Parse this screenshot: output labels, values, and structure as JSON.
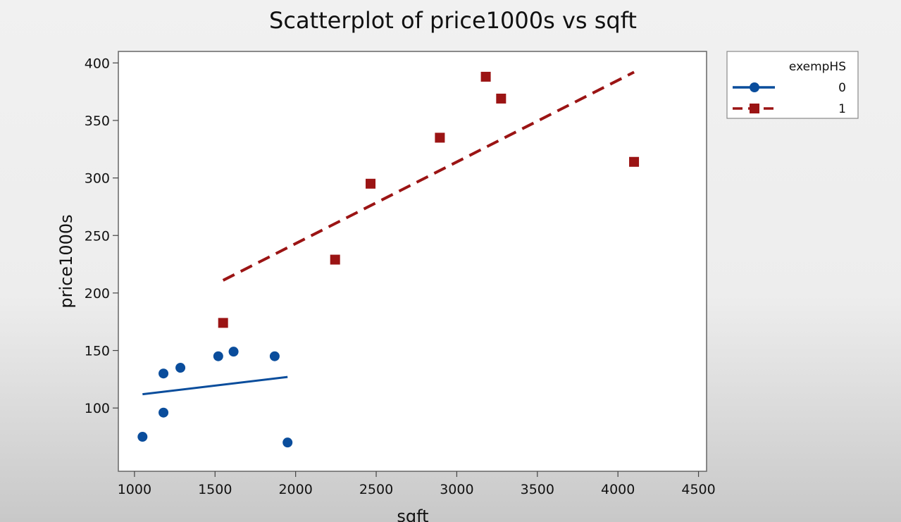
{
  "chart_data": {
    "type": "scatter",
    "title": "Scatterplot of price1000s vs sqft",
    "xlabel": "sqft",
    "ylabel": "price1000s",
    "xlim": [
      900,
      4550
    ],
    "ylim": [
      45,
      410
    ],
    "xticks": [
      1000,
      1500,
      2000,
      2500,
      3000,
      3500,
      4000,
      4500
    ],
    "yticks": [
      100,
      150,
      200,
      250,
      300,
      350,
      400
    ],
    "grid": false,
    "legend": {
      "title": "exempHS",
      "placement": "top-right outside",
      "entries": [
        "0",
        "1"
      ]
    },
    "series": [
      {
        "name": "0",
        "color": "#0a4d9c",
        "marker": "circle",
        "line_style": "solid",
        "points": [
          {
            "x": 1050,
            "y": 75
          },
          {
            "x": 1180,
            "y": 130
          },
          {
            "x": 1180,
            "y": 96
          },
          {
            "x": 1285,
            "y": 135
          },
          {
            "x": 1520,
            "y": 145
          },
          {
            "x": 1615,
            "y": 149
          },
          {
            "x": 1870,
            "y": 145
          },
          {
            "x": 1950,
            "y": 70
          }
        ],
        "fit_line": {
          "x": [
            1050,
            1950
          ],
          "y": [
            112,
            127
          ]
        }
      },
      {
        "name": "1",
        "color": "#9b1414",
        "marker": "square",
        "line_style": "dashed",
        "points": [
          {
            "x": 1550,
            "y": 174
          },
          {
            "x": 2245,
            "y": 229
          },
          {
            "x": 2465,
            "y": 295
          },
          {
            "x": 2895,
            "y": 335
          },
          {
            "x": 3180,
            "y": 388
          },
          {
            "x": 3275,
            "y": 369
          },
          {
            "x": 4100,
            "y": 314
          }
        ],
        "fit_line": {
          "x": [
            1550,
            4100
          ],
          "y": [
            211,
            392
          ]
        }
      }
    ]
  }
}
